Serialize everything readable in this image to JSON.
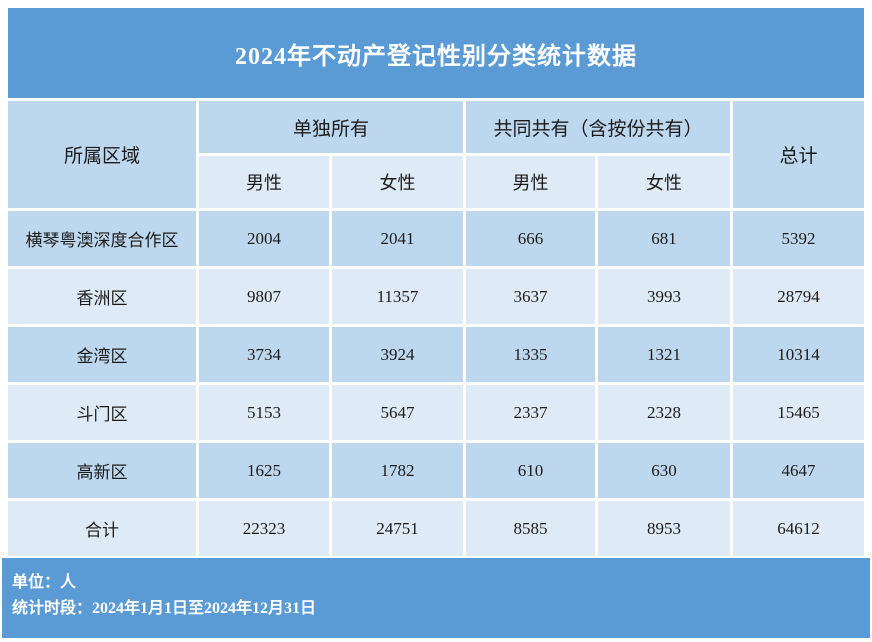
{
  "title": "2024年不动产登记性别分类统计数据",
  "colors": {
    "banner_blue": "#5B9BD5",
    "row_dark": "#BDD7EE",
    "row_light": "#DEEBF7",
    "text_dark": "#1b1b1b",
    "text_light": "#ffffff"
  },
  "table": {
    "region_header": "所属区域",
    "group_headers": [
      "单独所有",
      "共同共有（含按份共有）"
    ],
    "sub_headers": [
      "男性",
      "女性",
      "男性",
      "女性"
    ],
    "total_header": "总计",
    "rows": [
      {
        "region": "横琴粤澳深度合作区",
        "values": [
          "2004",
          "2041",
          "666",
          "681",
          "5392"
        ]
      },
      {
        "region": "香洲区",
        "values": [
          "9807",
          "11357",
          "3637",
          "3993",
          "28794"
        ]
      },
      {
        "region": "金湾区",
        "values": [
          "3734",
          "3924",
          "1335",
          "1321",
          "10314"
        ]
      },
      {
        "region": "斗门区",
        "values": [
          "5153",
          "5647",
          "2337",
          "2328",
          "15465"
        ]
      },
      {
        "region": "高新区",
        "values": [
          "1625",
          "1782",
          "610",
          "630",
          "4647"
        ]
      },
      {
        "region": "合计",
        "values": [
          "22323",
          "24751",
          "8585",
          "8953",
          "64612"
        ]
      }
    ]
  },
  "footer": {
    "unit_line": "单位：人",
    "period_line": "统计时段：2024年1月1日至2024年12月31日"
  },
  "chart_data": {
    "type": "table",
    "title": "2024年不动产登记性别分类统计数据",
    "columns": [
      "所属区域",
      "单独所有-男性",
      "单独所有-女性",
      "共同共有（含按份共有）-男性",
      "共同共有（含按份共有）-女性",
      "总计"
    ],
    "rows": [
      [
        "横琴粤澳深度合作区",
        2004,
        2041,
        666,
        681,
        5392
      ],
      [
        "香洲区",
        9807,
        11357,
        3637,
        3993,
        28794
      ],
      [
        "金湾区",
        3734,
        3924,
        1335,
        1321,
        10314
      ],
      [
        "斗门区",
        5153,
        5647,
        2337,
        2328,
        15465
      ],
      [
        "高新区",
        1625,
        1782,
        610,
        630,
        4647
      ],
      [
        "合计",
        22323,
        24751,
        8585,
        8953,
        64612
      ]
    ],
    "unit": "人",
    "period": "2024年1月1日至2024年12月31日"
  }
}
